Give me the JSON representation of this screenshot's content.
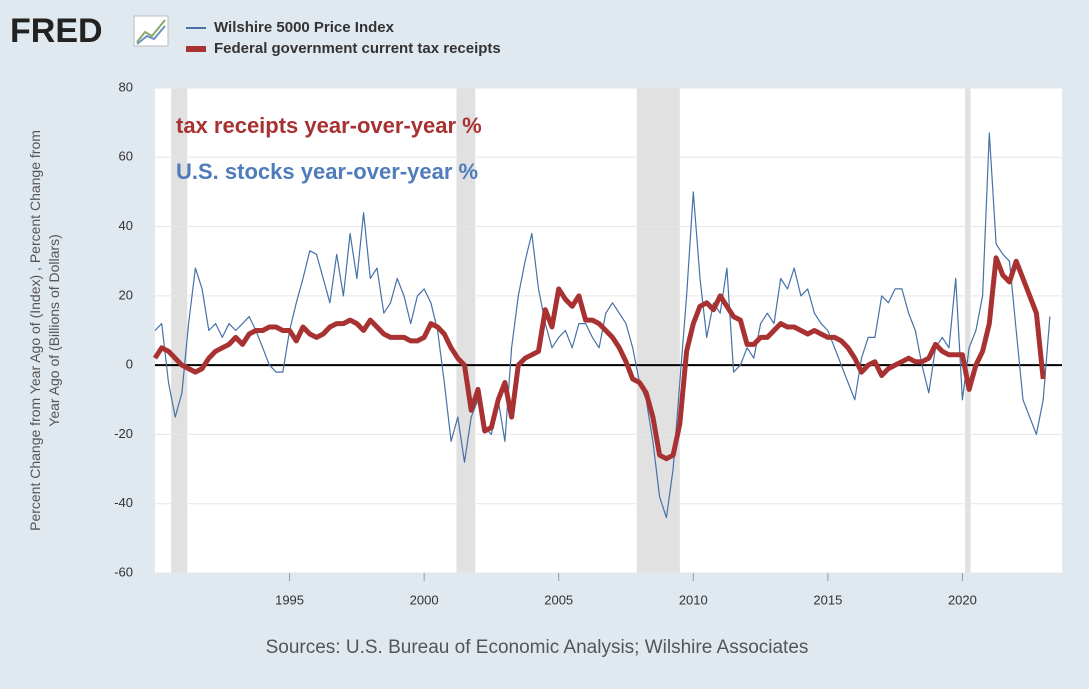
{
  "logo": "FRED",
  "chart_data": {
    "type": "line",
    "ylabel": [
      "Percent Change from Year Ago of (Index) , Percent Change from",
      "Year Ago of (Billions of Dollars)"
    ],
    "annotations": [
      {
        "text": "tax receipts year-over-year %",
        "color": "#a83232"
      },
      {
        "text": "U.S. stocks year-over-year %",
        "color": "#4f7cba"
      }
    ],
    "source": "Sources: U.S. Bureau of Economic Analysis; Wilshire Associates",
    "xlim": [
      1990,
      2023.7
    ],
    "ylim": [
      -60,
      80
    ],
    "xticks": [
      1995,
      2000,
      2005,
      2010,
      2015,
      2020
    ],
    "yticks": [
      -60,
      -40,
      -20,
      0,
      20,
      40,
      60,
      80
    ],
    "grid": true,
    "recessions": [
      [
        1990.6,
        1991.2
      ],
      [
        2001.2,
        2001.9
      ],
      [
        2007.9,
        2009.5
      ],
      [
        2020.1,
        2020.3
      ]
    ],
    "series": [
      {
        "name": "Wilshire 5000 Price Index",
        "color": "#4572a7",
        "width": 1.2,
        "x": [
          1990,
          1990.25,
          1990.5,
          1990.75,
          1991,
          1991.25,
          1991.5,
          1991.75,
          1992,
          1992.25,
          1992.5,
          1992.75,
          1993,
          1993.25,
          1993.5,
          1993.75,
          1994,
          1994.25,
          1994.5,
          1994.75,
          1995,
          1995.25,
          1995.5,
          1995.75,
          1996,
          1996.25,
          1996.5,
          1996.75,
          1997,
          1997.25,
          1997.5,
          1997.75,
          1998,
          1998.25,
          1998.5,
          1998.75,
          1999,
          1999.25,
          1999.5,
          1999.75,
          2000,
          2000.25,
          2000.5,
          2000.75,
          2001,
          2001.25,
          2001.5,
          2001.75,
          2002,
          2002.25,
          2002.5,
          2002.75,
          2003,
          2003.25,
          2003.5,
          2003.75,
          2004,
          2004.25,
          2004.5,
          2004.75,
          2005,
          2005.25,
          2005.5,
          2005.75,
          2006,
          2006.25,
          2006.5,
          2006.75,
          2007,
          2007.25,
          2007.5,
          2007.75,
          2008,
          2008.25,
          2008.5,
          2008.75,
          2009,
          2009.25,
          2009.5,
          2009.75,
          2010,
          2010.25,
          2010.5,
          2010.75,
          2011,
          2011.25,
          2011.5,
          2011.75,
          2012,
          2012.25,
          2012.5,
          2012.75,
          2013,
          2013.25,
          2013.5,
          2013.75,
          2014,
          2014.25,
          2014.5,
          2014.75,
          2015,
          2015.25,
          2015.5,
          2015.75,
          2016,
          2016.25,
          2016.5,
          2016.75,
          2017,
          2017.25,
          2017.5,
          2017.75,
          2018,
          2018.25,
          2018.5,
          2018.75,
          2019,
          2019.25,
          2019.5,
          2019.75,
          2020,
          2020.25,
          2020.5,
          2020.75,
          2021,
          2021.25,
          2021.5,
          2021.75,
          2022,
          2022.25,
          2022.5,
          2022.75,
          2023,
          2023.25
        ],
        "values": [
          10,
          12,
          -5,
          -15,
          -8,
          12,
          28,
          22,
          10,
          12,
          8,
          12,
          10,
          12,
          14,
          10,
          5,
          0,
          -2,
          -2,
          10,
          18,
          25,
          33,
          32,
          25,
          18,
          32,
          20,
          38,
          25,
          44,
          25,
          28,
          15,
          18,
          25,
          20,
          12,
          20,
          22,
          18,
          10,
          -5,
          -22,
          -15,
          -28,
          -15,
          -10,
          -18,
          -20,
          -10,
          -22,
          5,
          20,
          30,
          38,
          22,
          12,
          5,
          8,
          10,
          5,
          12,
          12,
          8,
          5,
          15,
          18,
          15,
          12,
          5,
          -5,
          -10,
          -22,
          -38,
          -44,
          -30,
          -5,
          20,
          50,
          25,
          8,
          18,
          15,
          28,
          -2,
          0,
          5,
          2,
          12,
          15,
          12,
          25,
          22,
          28,
          20,
          22,
          15,
          12,
          10,
          5,
          0,
          -5,
          -10,
          2,
          8,
          8,
          20,
          18,
          22,
          22,
          15,
          10,
          0,
          -8,
          5,
          8,
          5,
          25,
          -10,
          5,
          10,
          20,
          67,
          35,
          32,
          30,
          10,
          -10,
          -15,
          -20,
          -10,
          14
        ]
      },
      {
        "name": "Federal government current tax receipts",
        "color": "#a83232",
        "width": 5,
        "x": [
          1990,
          1990.25,
          1990.5,
          1990.75,
          1991,
          1991.25,
          1991.5,
          1991.75,
          1992,
          1992.25,
          1992.5,
          1992.75,
          1993,
          1993.25,
          1993.5,
          1993.75,
          1994,
          1994.25,
          1994.5,
          1994.75,
          1995,
          1995.25,
          1995.5,
          1995.75,
          1996,
          1996.25,
          1996.5,
          1996.75,
          1997,
          1997.25,
          1997.5,
          1997.75,
          1998,
          1998.25,
          1998.5,
          1998.75,
          1999,
          1999.25,
          1999.5,
          1999.75,
          2000,
          2000.25,
          2000.5,
          2000.75,
          2001,
          2001.25,
          2001.5,
          2001.75,
          2002,
          2002.25,
          2002.5,
          2002.75,
          2003,
          2003.25,
          2003.5,
          2003.75,
          2004,
          2004.25,
          2004.5,
          2004.75,
          2005,
          2005.25,
          2005.5,
          2005.75,
          2006,
          2006.25,
          2006.5,
          2006.75,
          2007,
          2007.25,
          2007.5,
          2007.75,
          2008,
          2008.25,
          2008.5,
          2008.75,
          2009,
          2009.25,
          2009.5,
          2009.75,
          2010,
          2010.25,
          2010.5,
          2010.75,
          2011,
          2011.25,
          2011.5,
          2011.75,
          2012,
          2012.25,
          2012.5,
          2012.75,
          2013,
          2013.25,
          2013.5,
          2013.75,
          2014,
          2014.25,
          2014.5,
          2014.75,
          2015,
          2015.25,
          2015.5,
          2015.75,
          2016,
          2016.25,
          2016.5,
          2016.75,
          2017,
          2017.25,
          2017.5,
          2017.75,
          2018,
          2018.25,
          2018.5,
          2018.75,
          2019,
          2019.25,
          2019.5,
          2019.75,
          2020,
          2020.25,
          2020.5,
          2020.75,
          2021,
          2021.25,
          2021.5,
          2021.75,
          2022,
          2022.25,
          2022.5,
          2022.75,
          2023
        ],
        "values": [
          2,
          5,
          4,
          2,
          0,
          -1,
          -2,
          -1,
          2,
          4,
          5,
          6,
          8,
          6,
          9,
          10,
          10,
          11,
          11,
          10,
          10,
          7,
          11,
          9,
          8,
          9,
          11,
          12,
          12,
          13,
          12,
          10,
          13,
          11,
          9,
          8,
          8,
          8,
          7,
          7,
          8,
          12,
          11,
          9,
          5,
          2,
          0,
          -13,
          -7,
          -19,
          -18,
          -10,
          -5,
          -15,
          0,
          2,
          3,
          4,
          16,
          11,
          22,
          19,
          17,
          20,
          13,
          13,
          12,
          10,
          8,
          5,
          1,
          -4,
          -5,
          -8,
          -15,
          -26,
          -27,
          -26,
          -17,
          4,
          12,
          17,
          18,
          16,
          20,
          17,
          14,
          13,
          6,
          6,
          8,
          8,
          10,
          12,
          11,
          11,
          10,
          9,
          10,
          9,
          8,
          8,
          7,
          5,
          2,
          -2,
          0,
          1,
          -3,
          -1,
          0,
          1,
          2,
          1,
          1,
          2,
          6,
          4,
          3,
          3,
          3,
          -7,
          0,
          4,
          12,
          31,
          26,
          24,
          30,
          25,
          20,
          15,
          -4
        ]
      }
    ]
  }
}
